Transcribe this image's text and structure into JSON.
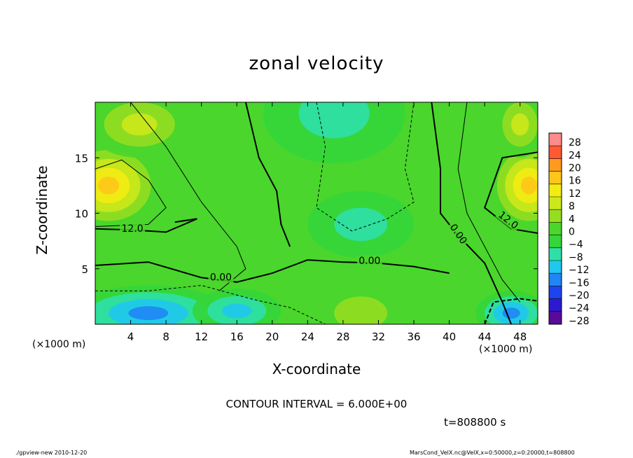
{
  "title": "zonal velocity",
  "footer": {
    "left": "./gpview-new  2010-12-20",
    "right": "MarsCond_VelX.nc@VelX,x=0:50000,z=0:20000,t=808800"
  },
  "annotation": {
    "contour_interval": "CONTOUR INTERVAL = 6.000E+00",
    "time": "t=808800 s"
  },
  "chart_data": {
    "type": "heatmap",
    "title": "zonal velocity",
    "xlabel": "X-coordinate",
    "ylabel": "Z-coordinate",
    "x_unit_label": "(×1000 m)",
    "xlim": [
      0,
      50
    ],
    "ylim": [
      0,
      20
    ],
    "xticks": [
      4,
      8,
      12,
      16,
      20,
      24,
      28,
      32,
      36,
      40,
      44,
      48
    ],
    "yticks": [
      5,
      10,
      15
    ],
    "colorbar": {
      "levels": [
        -28,
        -24,
        -20,
        -16,
        -12,
        -8,
        -4,
        0,
        4,
        8,
        12,
        16,
        20,
        24,
        28
      ],
      "labels": [
        "28",
        "24",
        "20",
        "16",
        "12",
        "8",
        "4",
        "0",
        "−4",
        "−8",
        "−12",
        "−16",
        "−20",
        "−24",
        "−28"
      ],
      "colors": [
        "#5a0a9a",
        "#2d1ad0",
        "#1e44ee",
        "#1f86f4",
        "#1fc8ee",
        "#2ee0a8",
        "#34d63a",
        "#4ad62c",
        "#94de20",
        "#cce81a",
        "#f2ec12",
        "#ffc61a",
        "#ff9a1e",
        "#ff5a32",
        "#ff8a8a"
      ]
    },
    "contour_labels": [
      {
        "text": "12.0",
        "x": 4.2,
        "z": 8.4,
        "angle": 0
      },
      {
        "text": "0.00",
        "x": 14.2,
        "z": 4.0,
        "angle": 0
      },
      {
        "text": "0.00",
        "x": 31.0,
        "z": 5.5,
        "angle": 0
      },
      {
        "text": "0.00",
        "x": 40.8,
        "z": 8.0,
        "angle": 55
      },
      {
        "text": "12.0",
        "x": 46.5,
        "z": 9.2,
        "angle": 38
      }
    ],
    "blobs": [
      {
        "x": 27,
        "z": 19,
        "rx": 8,
        "rz": 4.5,
        "v": -7
      },
      {
        "x": 30,
        "z": 9,
        "rx": 6,
        "rz": 3,
        "v": -7
      },
      {
        "x": 6,
        "z": 1,
        "rx": 9,
        "rz": 2.5,
        "v": -14
      },
      {
        "x": 16,
        "z": 1.2,
        "rx": 5,
        "rz": 2,
        "v": -10
      },
      {
        "x": 47,
        "z": 1,
        "rx": 4,
        "rz": 2,
        "v": -16
      },
      {
        "x": 1.5,
        "z": 12.5,
        "rx": 6,
        "rz": 4,
        "v": 17
      },
      {
        "x": 49,
        "z": 12.5,
        "rx": 4.5,
        "rz": 4,
        "v": 17
      },
      {
        "x": 5,
        "z": 18,
        "rx": 6,
        "rz": 3,
        "v": 9
      },
      {
        "x": 48,
        "z": 18,
        "rx": 3,
        "rz": 3,
        "v": 9
      },
      {
        "x": 30,
        "z": 1,
        "rx": 6,
        "rz": 3,
        "v": 5
      }
    ]
  }
}
